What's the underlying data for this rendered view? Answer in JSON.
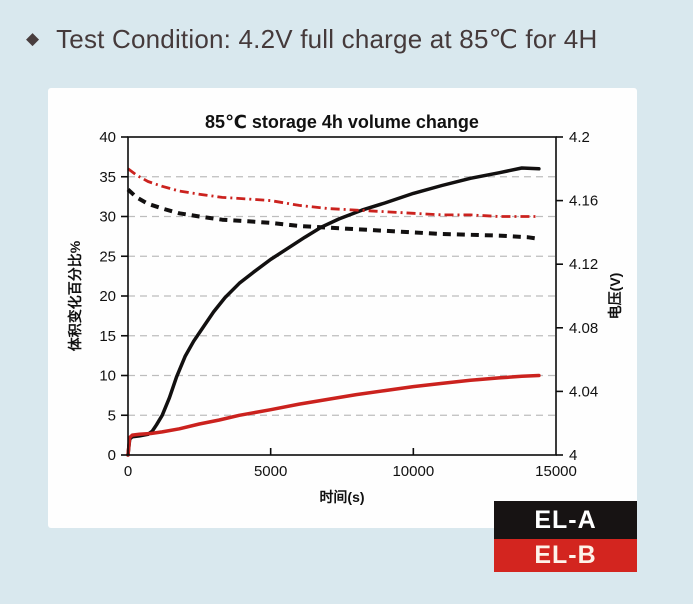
{
  "header": {
    "bullet": "◆",
    "text": "Test Condition: 4.2V full charge at 85℃ for 4H"
  },
  "colors": {
    "background": "#d9e8ee",
    "panel": "#fefefe",
    "header_text": "#453a3b",
    "series_black": "#121010",
    "series_red": "#cb221e",
    "grid": "#bdbdbd",
    "legend_black_bg": "#171313",
    "legend_red_bg": "#d3251f",
    "legend_text": "#ffffff"
  },
  "chart_data": {
    "type": "line",
    "title": "85℃ storage 4h volume change",
    "xlabel": "时间(s)",
    "ylabel_left": "体积变化百分比%",
    "ylabel_right": "电压(V)",
    "xlim": [
      0,
      15000
    ],
    "xticks": [
      0,
      5000,
      10000,
      15000
    ],
    "xtick_labels": [
      "0",
      "5000",
      "10000",
      "15000"
    ],
    "ylim_left": [
      0,
      40
    ],
    "yticks_left": [
      0,
      5,
      10,
      15,
      20,
      25,
      30,
      35,
      40
    ],
    "ylim_right": [
      4,
      4.2
    ],
    "yticks_right": [
      4,
      4.04,
      4.08,
      4.12,
      4.16,
      4.2
    ],
    "ytick_right_labels": [
      "4",
      "4.04",
      "4.08",
      "4.12",
      "4.16",
      "4.2"
    ],
    "grid": "horizontal dashed every 5 left-axis units",
    "legend_position": "below-right, stacked color blocks",
    "series": [
      {
        "name": "EL-A volume change %",
        "axis": "left",
        "color": "#121010",
        "style": "solid",
        "x": [
          0,
          60,
          150,
          400,
          700,
          850,
          1000,
          1200,
          1450,
          1700,
          2000,
          2300,
          2600,
          3000,
          3400,
          3900,
          4400,
          5000,
          5600,
          6200,
          6800,
          7400,
          8200,
          9000,
          10000,
          11000,
          12000,
          13000,
          13800,
          14400
        ],
        "y": [
          0,
          2.0,
          2.3,
          2.4,
          2.6,
          3.0,
          3.8,
          5.0,
          7.2,
          9.8,
          12.4,
          14.3,
          15.9,
          18.0,
          19.8,
          21.6,
          23.0,
          24.6,
          26.0,
          27.4,
          28.7,
          29.7,
          30.8,
          31.7,
          32.9,
          33.9,
          34.8,
          35.5,
          36.1,
          36.0
        ]
      },
      {
        "name": "EL-B volume change %",
        "axis": "left",
        "color": "#cb221e",
        "style": "solid",
        "x": [
          0,
          60,
          150,
          400,
          800,
          1200,
          1800,
          2500,
          3200,
          3900,
          5000,
          6000,
          7000,
          8000,
          9000,
          10000,
          11000,
          12000,
          13000,
          13800,
          14400
        ],
        "y": [
          0,
          2.2,
          2.5,
          2.6,
          2.7,
          2.9,
          3.3,
          3.9,
          4.4,
          5.0,
          5.7,
          6.4,
          7.0,
          7.6,
          8.1,
          8.6,
          9.0,
          9.4,
          9.7,
          9.9,
          10.0
        ]
      },
      {
        "name": "EL-A voltage (V)",
        "axis": "right",
        "color": "#121010",
        "style": "dashed",
        "x": [
          0,
          300,
          700,
          1200,
          1800,
          2500,
          3300,
          4200,
          5000,
          6000,
          7000,
          8000,
          9000,
          10000,
          11000,
          12000,
          13000,
          14000,
          14400
        ],
        "y": [
          4.167,
          4.162,
          4.158,
          4.155,
          4.152,
          4.15,
          4.148,
          4.147,
          4.146,
          4.144,
          4.143,
          4.142,
          4.141,
          4.14,
          4.139,
          4.1385,
          4.138,
          4.137,
          4.136
        ]
      },
      {
        "name": "EL-B voltage (V)",
        "axis": "right",
        "color": "#cb221e",
        "style": "dashdot",
        "x": [
          0,
          300,
          700,
          1200,
          1800,
          2500,
          3300,
          4200,
          5000,
          6000,
          7000,
          8000,
          9000,
          10000,
          11000,
          12000,
          13000,
          14000,
          14400
        ],
        "y": [
          4.18,
          4.176,
          4.172,
          4.169,
          4.166,
          4.164,
          4.162,
          4.161,
          4.16,
          4.157,
          4.155,
          4.154,
          4.153,
          4.152,
          4.151,
          4.151,
          4.15,
          4.15,
          4.15
        ]
      }
    ],
    "legend": [
      {
        "label": "EL-A",
        "bg": "#171313",
        "fg": "#ffffff"
      },
      {
        "label": "EL-B",
        "bg": "#d3251f",
        "fg": "#fdf3ea"
      }
    ]
  }
}
